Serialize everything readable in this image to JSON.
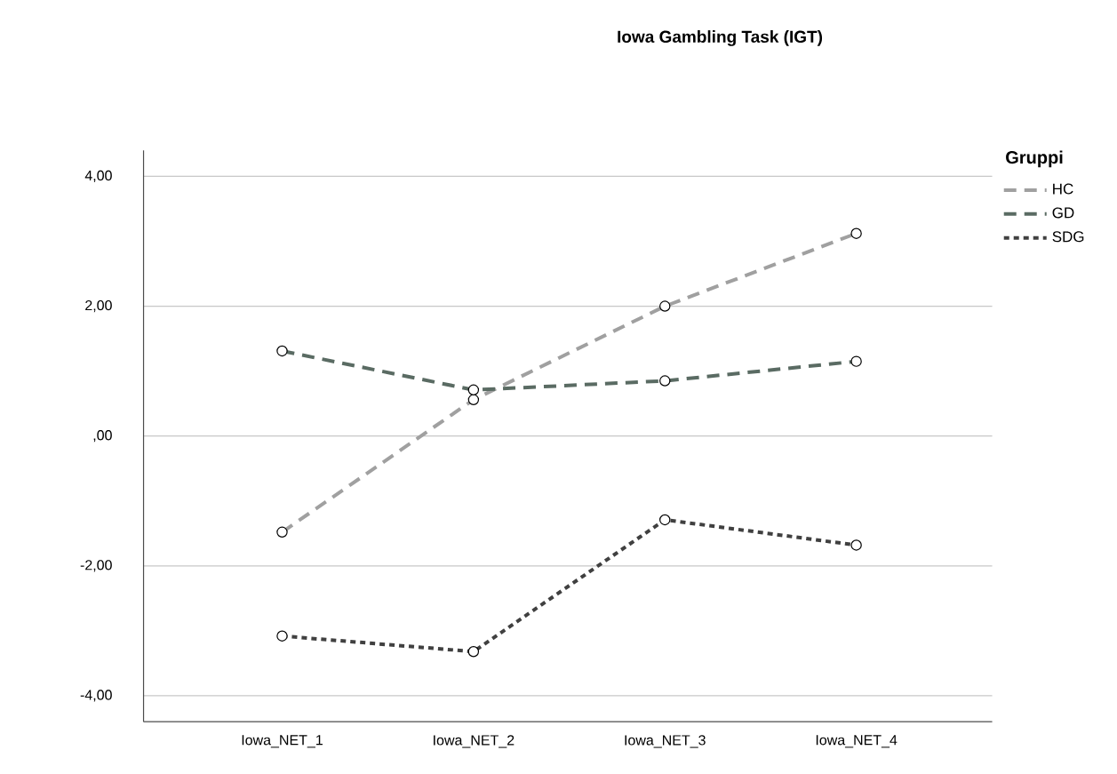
{
  "chart_data": {
    "type": "line",
    "title": "Iowa Gambling Task (IGT)",
    "legend_title": "Gruppi",
    "categories": [
      "Iowa_NET_1",
      "Iowa_NET_2",
      "Iowa_NET_3",
      "Iowa_NET_4"
    ],
    "series": [
      {
        "name": "HC",
        "color": "#a0a0a0",
        "line_style": "dashed",
        "values": [
          -1.48,
          0.56,
          2.0,
          3.12
        ]
      },
      {
        "name": "GD",
        "color": "#5a6b63",
        "line_style": "dashed",
        "values": [
          1.31,
          0.71,
          0.85,
          1.15
        ]
      },
      {
        "name": "SDG",
        "color": "#404040",
        "line_style": "dotted",
        "values": [
          -3.08,
          -3.32,
          -1.29,
          -1.68
        ]
      }
    ],
    "ylim": [
      -4.4,
      4.4
    ],
    "yticks": [
      {
        "value": -4,
        "label": "-4,00"
      },
      {
        "value": -2,
        "label": "-2,00"
      },
      {
        "value": 0,
        "label": ",00"
      },
      {
        "value": 2,
        "label": "2,00"
      },
      {
        "value": 4,
        "label": "4,00"
      }
    ],
    "grid": "y",
    "legend": "top right",
    "marker": "circle"
  }
}
